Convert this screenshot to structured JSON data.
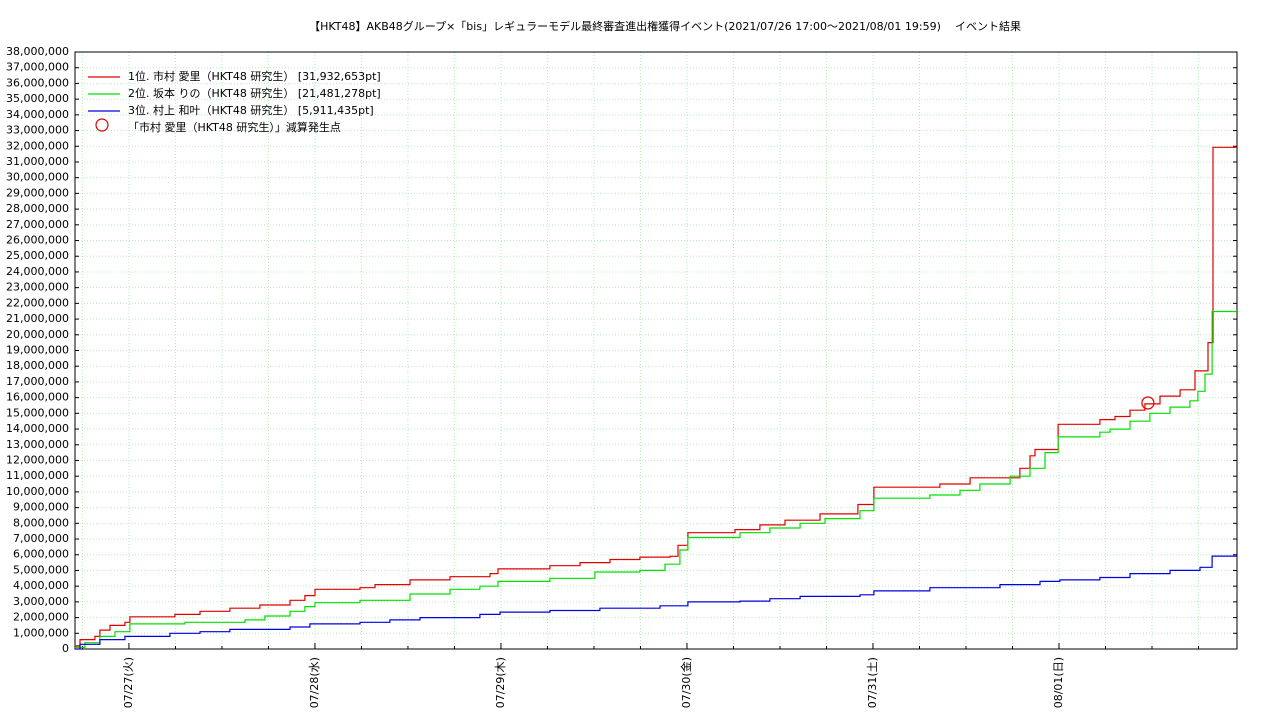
{
  "chart_data": {
    "type": "step",
    "title": "【HKT48】AKB48グループ×「bis」レギュラーモデル最終審査進出権獲得イベント(2021/07/26 17:00〜2021/08/01 19:59)",
    "subtitle": "イベント結果",
    "grid": true,
    "legend": "upper-left",
    "xlim": [
      -0.29,
      5.957
    ],
    "xticks": [
      {
        "value": 0,
        "label": "07/27(火)"
      },
      {
        "value": 1,
        "label": "07/28(水)"
      },
      {
        "value": 2,
        "label": "07/29(木)"
      },
      {
        "value": 3,
        "label": "07/30(金)"
      },
      {
        "value": 4,
        "label": "07/31(土)"
      },
      {
        "value": 5,
        "label": "08/01(日)"
      }
    ],
    "xminorticks": [
      -0.25,
      0.25,
      0.5,
      0.75,
      1.25,
      1.5,
      1.75,
      2.25,
      2.5,
      2.75,
      3.25,
      3.5,
      3.75,
      4.25,
      4.5,
      4.75,
      5.25,
      5.5,
      5.75
    ],
    "ylim": [
      0,
      38000000
    ],
    "yticks": [
      0,
      {
        "value": 1000000,
        "label": "1,000,000"
      },
      {
        "value": 2000000,
        "label": "2,000,000"
      },
      {
        "value": 3000000,
        "label": "3,000,000"
      },
      {
        "value": 4000000,
        "label": "4,000,000"
      },
      {
        "value": 5000000,
        "label": "5,000,000"
      },
      {
        "value": 6000000,
        "label": "6,000,000"
      },
      {
        "value": 7000000,
        "label": "7,000,000"
      },
      {
        "value": 8000000,
        "label": "8,000,000"
      },
      {
        "value": 9000000,
        "label": "9,000,000"
      },
      {
        "value": 10000000,
        "label": "10,000,000"
      },
      {
        "value": 11000000,
        "label": "11,000,000"
      },
      {
        "value": 12000000,
        "label": "12,000,000"
      },
      {
        "value": 13000000,
        "label": "13,000,000"
      },
      {
        "value": 14000000,
        "label": "14,000,000"
      },
      {
        "value": 15000000,
        "label": "15,000,000"
      },
      {
        "value": 16000000,
        "label": "16,000,000"
      },
      {
        "value": 17000000,
        "label": "17,000,000"
      },
      {
        "value": 18000000,
        "label": "18,000,000"
      },
      {
        "value": 19000000,
        "label": "19,000,000"
      },
      {
        "value": 20000000,
        "label": "20,000,000"
      },
      {
        "value": 21000000,
        "label": "21,000,000"
      },
      {
        "value": 22000000,
        "label": "22,000,000"
      },
      {
        "value": 23000000,
        "label": "23,000,000"
      },
      {
        "value": 24000000,
        "label": "24,000,000"
      },
      {
        "value": 25000000,
        "label": "25,000,000"
      },
      {
        "value": 26000000,
        "label": "26,000,000"
      },
      {
        "value": 27000000,
        "label": "27,000,000"
      },
      {
        "value": 28000000,
        "label": "28,000,000"
      },
      {
        "value": 29000000,
        "label": "29,000,000"
      },
      {
        "value": 30000000,
        "label": "30,000,000"
      },
      {
        "value": 31000000,
        "label": "31,000,000"
      },
      {
        "value": 32000000,
        "label": "32,000,000"
      },
      {
        "value": 33000000,
        "label": "33,000,000"
      },
      {
        "value": 34000000,
        "label": "34,000,000"
      },
      {
        "value": 35000000,
        "label": "35,000,000"
      },
      {
        "value": 36000000,
        "label": "36,000,000"
      },
      {
        "value": 37000000,
        "label": "37,000,000"
      },
      {
        "value": 38000000,
        "label": "38,000,000"
      }
    ],
    "series": [
      {
        "name": "1位. 市村 愛里（HKT48 研究生） [31,932,653pt]",
        "color": "#e00000",
        "x": [
          -0.29,
          -0.263,
          -0.183,
          -0.156,
          -0.102,
          -0.022,
          0.005,
          0.247,
          0.382,
          0.543,
          0.704,
          0.866,
          0.946,
          1.0,
          1.242,
          1.323,
          1.511,
          1.726,
          1.941,
          1.984,
          2.263,
          2.425,
          2.586,
          2.747,
          2.909,
          2.952,
          3.005,
          3.258,
          3.392,
          3.527,
          3.715,
          3.919,
          4.005,
          4.36,
          4.522,
          4.79,
          4.844,
          4.871,
          4.995,
          5.22,
          5.301,
          5.382,
          5.462,
          5.543,
          5.651,
          5.731,
          5.801,
          5.828,
          5.957
        ],
        "values": [
          200000,
          600000,
          800000,
          1200000,
          1500000,
          1700000,
          2050000,
          2200000,
          2400000,
          2600000,
          2800000,
          3100000,
          3400000,
          3800000,
          3900000,
          4100000,
          4400000,
          4600000,
          4800000,
          5100000,
          5300000,
          5500000,
          5700000,
          5850000,
          5900000,
          6600000,
          7400000,
          7600000,
          7900000,
          8200000,
          8600000,
          9200000,
          10300000,
          10500000,
          10900000,
          11500000,
          12300000,
          12700000,
          14300000,
          14600000,
          14800000,
          15200000,
          15600000,
          16100000,
          16500000,
          17700000,
          19500000,
          31932653,
          31932653
        ]
      },
      {
        "name": "2位. 坂本 りの（HKT48 研究生） [21,481,278pt]",
        "color": "#00e000",
        "x": [
          -0.29,
          -0.237,
          -0.156,
          -0.075,
          0.005,
          0.301,
          0.624,
          0.731,
          0.866,
          0.946,
          1.0,
          1.242,
          1.511,
          1.726,
          1.887,
          1.984,
          2.263,
          2.505,
          2.747,
          2.882,
          2.962,
          3.005,
          3.285,
          3.446,
          3.608,
          3.742,
          3.93,
          4.005,
          4.306,
          4.468,
          4.575,
          4.737,
          4.844,
          4.925,
          4.995,
          5.22,
          5.274,
          5.382,
          5.489,
          5.597,
          5.704,
          5.747,
          5.785,
          5.823,
          5.957
        ],
        "values": [
          100000,
          400000,
          800000,
          1100000,
          1600000,
          1700000,
          1850000,
          2100000,
          2400000,
          2700000,
          2950000,
          3100000,
          3500000,
          3800000,
          4000000,
          4300000,
          4500000,
          4900000,
          5000000,
          5400000,
          6300000,
          7100000,
          7400000,
          7700000,
          8000000,
          8300000,
          8800000,
          9600000,
          9800000,
          10100000,
          10500000,
          11000000,
          11500000,
          12500000,
          13500000,
          13800000,
          14000000,
          14500000,
          15000000,
          15400000,
          15800000,
          16400000,
          17500000,
          21481278,
          21481278
        ]
      },
      {
        "name": "3位. 村上 和叶（HKT48 研究生） [5,911,435pt]",
        "color": "#0000e0",
        "x": [
          -0.29,
          -0.263,
          -0.156,
          -0.022,
          0.22,
          0.382,
          0.543,
          0.866,
          0.973,
          1.242,
          1.403,
          1.565,
          1.887,
          1.995,
          2.263,
          2.532,
          2.855,
          3.005,
          3.285,
          3.446,
          3.608,
          3.93,
          4.005,
          4.306,
          4.683,
          4.898,
          5.005,
          5.22,
          5.382,
          5.597,
          5.758,
          5.823,
          5.957
        ],
        "values": [
          0,
          300000,
          600000,
          800000,
          1000000,
          1100000,
          1250000,
          1400000,
          1600000,
          1700000,
          1850000,
          2000000,
          2200000,
          2350000,
          2450000,
          2600000,
          2750000,
          3000000,
          3050000,
          3200000,
          3350000,
          3450000,
          3700000,
          3900000,
          4100000,
          4300000,
          4400000,
          4550000,
          4800000,
          5000000,
          5200000,
          5911435,
          5911435
        ]
      }
    ],
    "markers": {
      "name": "「市村 愛里（HKT48 研究生）」減算発生点",
      "color": "#e00000",
      "x": [
        5.478
      ],
      "values": [
        15660000
      ]
    }
  }
}
